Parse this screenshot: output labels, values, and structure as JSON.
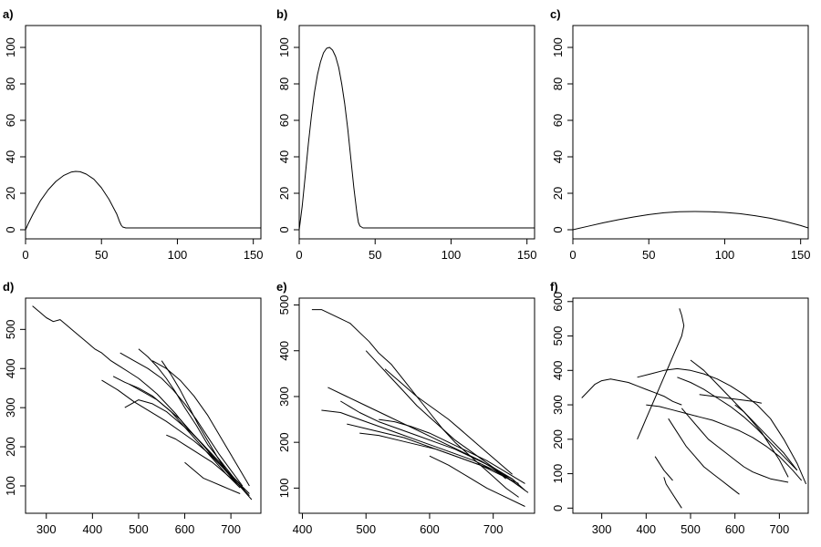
{
  "chart_data": [
    {
      "type": "line",
      "panel_label": "a)",
      "xlim": [
        0,
        155
      ],
      "ylim": [
        -5,
        112
      ],
      "xticks": [
        0,
        50,
        100,
        150
      ],
      "yticks": [
        0,
        20,
        40,
        60,
        80,
        100
      ],
      "series": [
        {
          "x": [
            0,
            2,
            5,
            10,
            15,
            20,
            25,
            30,
            33,
            36,
            40,
            45,
            50,
            55,
            60,
            62,
            63,
            64,
            66,
            70,
            80,
            100,
            120,
            140,
            155
          ],
          "y": [
            0,
            3.7,
            8.7,
            16.1,
            22.0,
            26.5,
            29.7,
            31.6,
            32.0,
            31.8,
            30.5,
            27.7,
            23.0,
            16.7,
            8.7,
            4.3,
            2.5,
            1.5,
            1.0,
            1.0,
            1.0,
            1.0,
            1.0,
            1.0,
            1.0
          ]
        }
      ]
    },
    {
      "type": "line",
      "panel_label": "b)",
      "xlim": [
        0,
        155
      ],
      "ylim": [
        -5,
        112
      ],
      "xticks": [
        0,
        50,
        100,
        150
      ],
      "yticks": [
        0,
        20,
        40,
        60,
        80,
        100
      ],
      "series": [
        {
          "x": [
            0,
            2,
            4,
            6,
            8,
            10,
            12,
            14,
            16,
            18,
            20,
            22,
            24,
            26,
            28,
            30,
            32,
            34,
            36,
            38,
            39,
            40,
            42,
            45,
            50,
            60,
            80,
            100,
            120,
            140,
            155
          ],
          "y": [
            0,
            13,
            30,
            47,
            62,
            75,
            85,
            92,
            97,
            99.5,
            100,
            98.5,
            95,
            89,
            80,
            69,
            55,
            39,
            23,
            9,
            4,
            2,
            1,
            1,
            1,
            1,
            1,
            1,
            1,
            1,
            1
          ]
        }
      ]
    },
    {
      "type": "line",
      "panel_label": "c)",
      "xlim": [
        0,
        155
      ],
      "ylim": [
        -5,
        112
      ],
      "xticks": [
        0,
        50,
        100,
        150
      ],
      "yticks": [
        0,
        20,
        40,
        60,
        80,
        100
      ],
      "series": [
        {
          "x": [
            0,
            10,
            20,
            30,
            40,
            50,
            60,
            70,
            80,
            90,
            100,
            110,
            120,
            130,
            140,
            150,
            155
          ],
          "y": [
            0,
            1.9,
            3.8,
            5.5,
            7.0,
            8.3,
            9.3,
            9.9,
            10.0,
            9.9,
            9.5,
            8.8,
            7.7,
            6.3,
            4.5,
            2.3,
            1.0
          ]
        }
      ]
    },
    {
      "type": "line",
      "panel_label": "d)",
      "xlim": [
        255,
        765
      ],
      "ylim": [
        30,
        580
      ],
      "xticks": [
        300,
        400,
        500,
        600,
        700
      ],
      "yticks": [
        100,
        200,
        300,
        400,
        500
      ],
      "series": [
        {
          "x": [
            270,
            285,
            300,
            315,
            330,
            345,
            360,
            375,
            390,
            405,
            420,
            440,
            460,
            480,
            500,
            520,
            540,
            560,
            580,
            600,
            620,
            640,
            660,
            680,
            700,
            715,
            730,
            745
          ],
          "y": [
            560,
            545,
            530,
            520,
            525,
            510,
            495,
            480,
            465,
            450,
            440,
            420,
            405,
            390,
            375,
            355,
            335,
            310,
            285,
            255,
            230,
            205,
            180,
            155,
            125,
            105,
            85,
            65
          ]
        },
        {
          "x": [
            445,
            470,
            500,
            530,
            560,
            590,
            620,
            650,
            680,
            710
          ],
          "y": [
            380,
            365,
            350,
            330,
            300,
            270,
            230,
            190,
            150,
            110
          ]
        },
        {
          "x": [
            460,
            490,
            520,
            550,
            575,
            600,
            625,
            650,
            675,
            700,
            725
          ],
          "y": [
            440,
            420,
            400,
            375,
            345,
            310,
            270,
            225,
            180,
            140,
            100
          ]
        },
        {
          "x": [
            500,
            520,
            540,
            560,
            580,
            600,
            625,
            650,
            680,
            710
          ],
          "y": [
            450,
            430,
            405,
            375,
            340,
            300,
            255,
            205,
            160,
            115
          ]
        },
        {
          "x": [
            530,
            560,
            590,
            620,
            650,
            680,
            710,
            740
          ],
          "y": [
            420,
            400,
            370,
            330,
            280,
            220,
            160,
            100
          ]
        },
        {
          "x": [
            420,
            455,
            490,
            525,
            560,
            590,
            620,
            650,
            680,
            710,
            740
          ],
          "y": [
            370,
            345,
            315,
            290,
            265,
            240,
            215,
            185,
            150,
            115,
            80
          ]
        },
        {
          "x": [
            470,
            500,
            530,
            560,
            590,
            615,
            640,
            660,
            690,
            720
          ],
          "y": [
            300,
            320,
            310,
            290,
            260,
            235,
            205,
            175,
            140,
            105
          ]
        },
        {
          "x": [
            550,
            570,
            590,
            610,
            630,
            650,
            670,
            690,
            710,
            730
          ],
          "y": [
            420,
            385,
            345,
            300,
            255,
            215,
            175,
            140,
            110,
            90
          ]
        },
        {
          "x": [
            480,
            510,
            540,
            570,
            600,
            630,
            660,
            690,
            720
          ],
          "y": [
            360,
            340,
            320,
            290,
            250,
            210,
            170,
            130,
            95
          ]
        },
        {
          "x": [
            560,
            580,
            600,
            620,
            640,
            660,
            680,
            700,
            720,
            740
          ],
          "y": [
            230,
            220,
            205,
            190,
            175,
            160,
            140,
            120,
            100,
            75
          ]
        },
        {
          "x": [
            600,
            620,
            640,
            660,
            680,
            700,
            720
          ],
          "y": [
            160,
            140,
            120,
            110,
            100,
            90,
            80
          ]
        }
      ]
    },
    {
      "type": "line",
      "panel_label": "e)",
      "xlim": [
        395,
        765
      ],
      "ylim": [
        45,
        515
      ],
      "xticks": [
        400,
        500,
        600,
        700
      ],
      "yticks": [
        100,
        200,
        300,
        400,
        500
      ],
      "series": [
        {
          "x": [
            415,
            430,
            445,
            460,
            475,
            490,
            505,
            520,
            540,
            560,
            580,
            600,
            620,
            640,
            660,
            680,
            700,
            720,
            740
          ],
          "y": [
            490,
            490,
            480,
            470,
            460,
            440,
            420,
            395,
            370,
            335,
            300,
            265,
            230,
            200,
            175,
            150,
            125,
            100,
            80
          ]
        },
        {
          "x": [
            430,
            460,
            490,
            520,
            550,
            580,
            610,
            640,
            670,
            700,
            730,
            755
          ],
          "y": [
            270,
            265,
            250,
            235,
            220,
            205,
            190,
            175,
            160,
            140,
            115,
            90
          ]
        },
        {
          "x": [
            440,
            470,
            500,
            530,
            560,
            590,
            620,
            650,
            680,
            710,
            740
          ],
          "y": [
            320,
            300,
            280,
            260,
            240,
            220,
            200,
            180,
            160,
            135,
            105
          ]
        },
        {
          "x": [
            460,
            490,
            520,
            550,
            580,
            610,
            640,
            670,
            700,
            730
          ],
          "y": [
            290,
            265,
            245,
            230,
            215,
            200,
            185,
            165,
            145,
            120
          ]
        },
        {
          "x": [
            470,
            500,
            530,
            560,
            590,
            620,
            650,
            680,
            710,
            740
          ],
          "y": [
            240,
            230,
            220,
            210,
            195,
            180,
            165,
            150,
            130,
            110
          ]
        },
        {
          "x": [
            490,
            520,
            550,
            580,
            610,
            640,
            670,
            700,
            730,
            750
          ],
          "y": [
            220,
            215,
            205,
            195,
            185,
            170,
            155,
            140,
            120,
            95
          ]
        },
        {
          "x": [
            500,
            520,
            540,
            560,
            580,
            600,
            620,
            640,
            660,
            680,
            700,
            720
          ],
          "y": [
            400,
            370,
            340,
            310,
            280,
            255,
            230,
            205,
            185,
            165,
            145,
            120
          ]
        },
        {
          "x": [
            530,
            555,
            580,
            605,
            630,
            655,
            680,
            705,
            730
          ],
          "y": [
            360,
            330,
            300,
            275,
            250,
            220,
            190,
            160,
            130
          ]
        },
        {
          "x": [
            520,
            545,
            570,
            600,
            630,
            660,
            690,
            720,
            750
          ],
          "y": [
            250,
            245,
            235,
            220,
            200,
            180,
            160,
            135,
            110
          ]
        },
        {
          "x": [
            600,
            630,
            660,
            690,
            720,
            750
          ],
          "y": [
            170,
            150,
            125,
            100,
            80,
            60
          ]
        }
      ]
    },
    {
      "type": "line",
      "panel_label": "f)",
      "xlim": [
        235,
        765
      ],
      "ylim": [
        -15,
        610
      ],
      "xticks": [
        300,
        400,
        500,
        600,
        700
      ],
      "yticks": [
        0,
        100,
        200,
        300,
        400,
        500,
        600
      ],
      "series": [
        {
          "x": [
            255,
            270,
            285,
            300,
            320,
            340,
            360,
            380,
            400,
            420,
            440,
            460,
            480
          ],
          "y": [
            320,
            340,
            360,
            370,
            375,
            370,
            365,
            355,
            345,
            335,
            325,
            310,
            300
          ]
        },
        {
          "x": [
            475,
            480,
            485,
            480,
            470,
            460,
            450,
            440,
            430,
            420,
            410,
            400,
            390,
            380
          ],
          "y": [
            580,
            560,
            530,
            500,
            470,
            440,
            410,
            380,
            350,
            320,
            290,
            260,
            230,
            200
          ]
        },
        {
          "x": [
            380,
            410,
            440,
            470,
            500,
            530,
            560,
            590,
            620,
            650,
            680,
            710,
            740,
            760
          ],
          "y": [
            380,
            390,
            400,
            405,
            400,
            390,
            375,
            355,
            330,
            300,
            260,
            200,
            130,
            70
          ]
        },
        {
          "x": [
            400,
            430,
            460,
            490,
            520,
            550,
            580,
            610,
            640,
            670,
            700,
            730,
            750
          ],
          "y": [
            300,
            295,
            285,
            275,
            265,
            255,
            240,
            225,
            205,
            180,
            150,
            110,
            80
          ]
        },
        {
          "x": [
            470,
            500,
            530,
            560,
            590,
            620,
            650,
            680,
            710,
            740
          ],
          "y": [
            380,
            365,
            345,
            320,
            295,
            265,
            230,
            190,
            150,
            110
          ]
        },
        {
          "x": [
            500,
            530,
            560,
            590,
            620,
            650,
            680,
            710,
            740
          ],
          "y": [
            430,
            400,
            360,
            320,
            280,
            240,
            200,
            160,
            110
          ]
        },
        {
          "x": [
            520,
            550,
            580,
            610,
            640,
            660
          ],
          "y": [
            330,
            325,
            320,
            315,
            310,
            305
          ]
        },
        {
          "x": [
            480,
            500,
            520,
            540,
            560,
            580,
            600,
            620,
            640,
            660,
            680,
            700,
            720
          ],
          "y": [
            290,
            260,
            230,
            200,
            180,
            160,
            140,
            120,
            105,
            95,
            85,
            80,
            75
          ]
        },
        {
          "x": [
            450,
            470,
            490,
            510,
            530,
            550,
            570,
            590,
            610
          ],
          "y": [
            260,
            220,
            180,
            150,
            120,
            100,
            80,
            60,
            40
          ]
        },
        {
          "x": [
            440,
            445,
            455,
            470,
            480
          ],
          "y": [
            90,
            70,
            50,
            20,
            0
          ]
        },
        {
          "x": [
            420,
            430,
            440,
            450,
            460
          ],
          "y": [
            150,
            130,
            110,
            95,
            80
          ]
        },
        {
          "x": [
            600,
            620,
            640,
            660,
            680,
            700,
            720
          ],
          "y": [
            300,
            280,
            250,
            220,
            180,
            140,
            90
          ]
        }
      ]
    }
  ]
}
